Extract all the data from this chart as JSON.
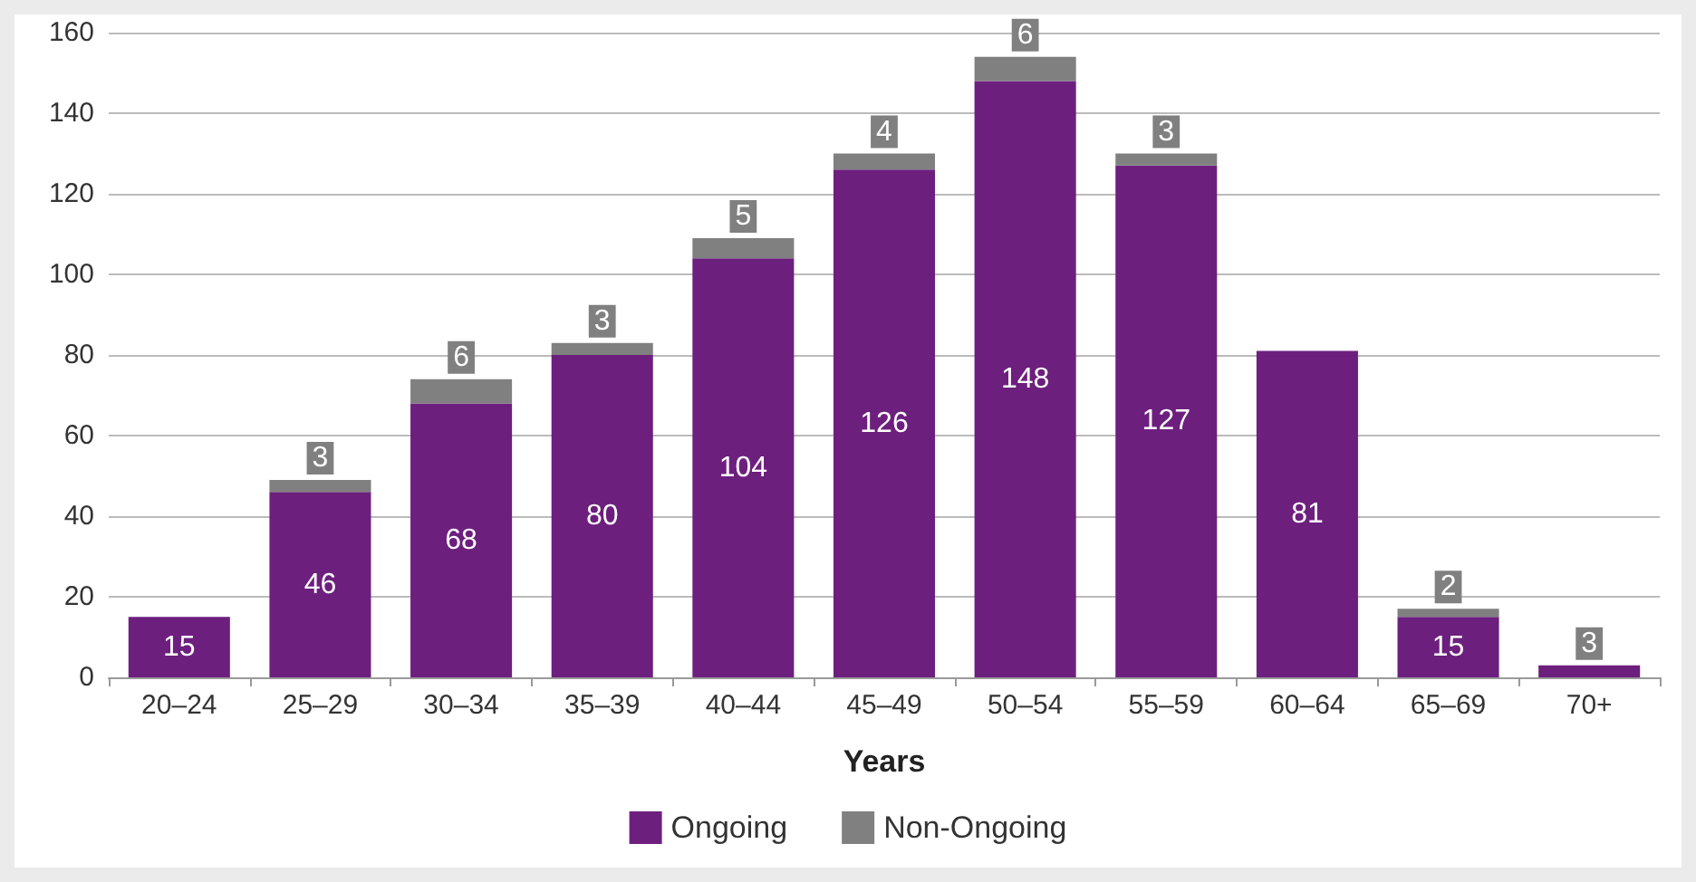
{
  "chart_data": {
    "type": "bar",
    "xlabel": "Years",
    "stacked": true,
    "categories": [
      "20–24",
      "25–29",
      "30–34",
      "35–39",
      "40–44",
      "45–49",
      "50–54",
      "55–59",
      "60–64",
      "65–69",
      "70+"
    ],
    "series": [
      {
        "name": "Ongoing",
        "color": "#6d1f7e",
        "values": [
          15,
          46,
          68,
          80,
          104,
          126,
          148,
          127,
          81,
          15,
          3
        ],
        "value_labels": [
          "15",
          "46",
          "68",
          "80",
          "104",
          "126",
          "148",
          "127",
          "81",
          "15",
          "3"
        ]
      },
      {
        "name": "Non-Ongoing",
        "color": "#808080",
        "values": [
          null,
          3,
          6,
          3,
          5,
          4,
          6,
          3,
          null,
          2,
          null
        ],
        "value_labels": [
          null,
          "3",
          "6",
          "3",
          "5",
          "4",
          "6",
          "3",
          null,
          "2",
          null
        ]
      }
    ],
    "ylim": [
      0,
      160
    ],
    "yticks": [
      0,
      20,
      40,
      60,
      80,
      100,
      120,
      140,
      160
    ],
    "grid": "y",
    "legend": "bottom"
  }
}
